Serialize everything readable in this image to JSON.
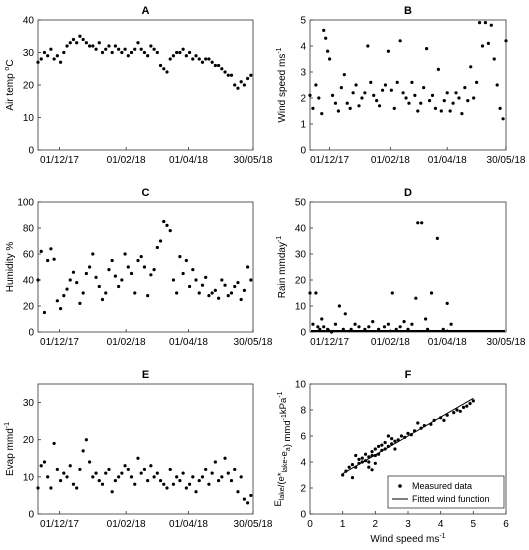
{
  "chart_data": [
    {
      "id": "A",
      "type": "scatter",
      "title": "A",
      "ylabel": "Air temp °C",
      "ylabel_main": "Air temp ",
      "ylabel_sup": "o",
      "ylabel_tail": "C",
      "ylim": [
        0,
        40
      ],
      "yticks": [
        0,
        10,
        20,
        30,
        40
      ],
      "xlim": [
        0,
        200
      ],
      "xticks": [
        {
          "pos": 20,
          "label": "01/12/17"
        },
        {
          "pos": 82,
          "label": "01/02/18"
        },
        {
          "pos": 140,
          "label": "01/04/18"
        },
        {
          "pos": 200,
          "label": "30/05/18"
        }
      ],
      "series": [
        {
          "x": [
            0,
            3,
            6,
            9,
            12,
            15,
            18,
            21,
            24,
            27,
            30,
            33,
            36,
            39,
            42,
            45,
            48,
            51,
            54,
            57,
            60,
            63,
            66,
            69,
            72,
            75,
            78,
            81,
            84,
            87,
            90,
            93,
            96,
            99,
            102,
            105,
            108,
            111,
            114,
            117,
            120,
            123,
            126,
            129,
            132,
            135,
            138,
            141,
            144,
            147,
            150,
            153,
            156,
            159,
            162,
            165,
            168,
            171,
            174,
            177,
            180,
            183,
            186,
            189,
            192,
            195,
            198
          ],
          "y": [
            27,
            28,
            30,
            29,
            31,
            28,
            29,
            27,
            30,
            32,
            33,
            34,
            33,
            35,
            34,
            33,
            32,
            32,
            31,
            33,
            30,
            31,
            32,
            30,
            32,
            31,
            30,
            31,
            29,
            30,
            31,
            33,
            31,
            30,
            29,
            32,
            31,
            30,
            26,
            25,
            24,
            28,
            29,
            30,
            30,
            31,
            29,
            30,
            28,
            29,
            28,
            27,
            28,
            28,
            27,
            26,
            26,
            25,
            24,
            23,
            23,
            20,
            19,
            21,
            20,
            22,
            23
          ]
        }
      ]
    },
    {
      "id": "B",
      "type": "scatter",
      "title": "B",
      "ylabel": "Wind speed ms⁻¹",
      "ylabel_main": "Wind speed ms",
      "ylabel_sup": "-1",
      "ylim": [
        0,
        5
      ],
      "yticks": [
        0,
        1,
        2,
        3,
        4,
        5
      ],
      "xlim": [
        0,
        200
      ],
      "xticks": [
        {
          "pos": 20,
          "label": "01/12/17"
        },
        {
          "pos": 82,
          "label": "01/02/18"
        },
        {
          "pos": 140,
          "label": "01/04/18"
        },
        {
          "pos": 200,
          "label": "30/05/18"
        }
      ],
      "series": [
        {
          "x": [
            0,
            3,
            6,
            9,
            12,
            14,
            16,
            18,
            20,
            23,
            26,
            29,
            32,
            35,
            38,
            41,
            44,
            47,
            50,
            53,
            56,
            59,
            62,
            65,
            68,
            71,
            74,
            77,
            80,
            83,
            86,
            89,
            92,
            95,
            98,
            101,
            104,
            107,
            110,
            113,
            116,
            119,
            122,
            125,
            128,
            131,
            134,
            137,
            140,
            143,
            146,
            149,
            152,
            155,
            158,
            161,
            164,
            167,
            170,
            173,
            176,
            179,
            182,
            185,
            188,
            191,
            194,
            197,
            200
          ],
          "y": [
            2.1,
            1.6,
            2.5,
            2.0,
            1.4,
            4.6,
            4.3,
            3.8,
            3.5,
            2.1,
            1.8,
            1.5,
            2.4,
            2.9,
            1.8,
            1.6,
            2.2,
            2.5,
            1.7,
            2.0,
            2.2,
            4.0,
            2.6,
            2.1,
            1.9,
            1.7,
            2.3,
            2.5,
            3.8,
            2.3,
            1.6,
            2.6,
            4.2,
            2.2,
            2.0,
            1.8,
            2.6,
            2.1,
            1.5,
            1.8,
            2.4,
            3.9,
            1.9,
            2.1,
            1.6,
            3.1,
            1.5,
            1.9,
            2.2,
            1.5,
            1.8,
            2.2,
            2.0,
            1.4,
            2.4,
            1.9,
            3.2,
            2.0,
            2.6,
            4.9,
            4.0,
            4.9,
            4.1,
            4.8,
            3.5,
            2.5,
            1.6,
            1.2,
            4.2
          ]
        }
      ]
    },
    {
      "id": "C",
      "type": "scatter",
      "title": "C",
      "ylabel": "Humidity %",
      "ylim": [
        0,
        100
      ],
      "yticks": [
        0,
        20,
        40,
        60,
        80,
        100
      ],
      "xlim": [
        0,
        200
      ],
      "xticks": [
        {
          "pos": 20,
          "label": "01/12/17"
        },
        {
          "pos": 82,
          "label": "01/02/18"
        },
        {
          "pos": 140,
          "label": "01/04/18"
        },
        {
          "pos": 200,
          "label": "30/05/18"
        }
      ],
      "series": [
        {
          "x": [
            0,
            3,
            6,
            9,
            12,
            15,
            18,
            21,
            24,
            27,
            30,
            33,
            36,
            39,
            42,
            45,
            48,
            51,
            54,
            57,
            60,
            63,
            66,
            69,
            72,
            75,
            78,
            81,
            84,
            87,
            90,
            93,
            96,
            99,
            102,
            105,
            108,
            111,
            114,
            117,
            120,
            123,
            126,
            129,
            132,
            135,
            138,
            141,
            144,
            147,
            150,
            153,
            156,
            159,
            162,
            165,
            168,
            171,
            174,
            177,
            180,
            183,
            186,
            189,
            192,
            195,
            198
          ],
          "y": [
            40,
            62,
            15,
            55,
            64,
            56,
            24,
            18,
            28,
            33,
            40,
            46,
            38,
            22,
            30,
            45,
            50,
            60,
            42,
            35,
            25,
            30,
            48,
            55,
            43,
            35,
            40,
            60,
            50,
            45,
            30,
            55,
            58,
            50,
            28,
            44,
            48,
            65,
            70,
            85,
            82,
            78,
            40,
            30,
            58,
            45,
            55,
            35,
            48,
            40,
            30,
            36,
            42,
            28,
            30,
            32,
            26,
            40,
            36,
            28,
            30,
            35,
            38,
            25,
            32,
            50,
            40
          ]
        }
      ]
    },
    {
      "id": "D",
      "type": "scatter",
      "title": "D",
      "ylabel": "Rain mmday⁻¹",
      "ylabel_main": "Rain mmday",
      "ylabel_sup": "-1",
      "ylim": [
        0,
        50
      ],
      "yticks": [
        0,
        10,
        20,
        30,
        40,
        50
      ],
      "xlim": [
        0,
        200
      ],
      "xticks": [
        {
          "pos": 20,
          "label": "01/12/17"
        },
        {
          "pos": 82,
          "label": "01/02/18"
        },
        {
          "pos": 140,
          "label": "01/04/18"
        },
        {
          "pos": 200,
          "label": "30/05/18"
        }
      ],
      "series": [
        {
          "x": [
            0,
            3,
            6,
            8,
            10,
            12,
            14,
            18,
            22,
            26,
            30,
            34,
            36,
            42,
            46,
            50,
            56,
            60,
            64,
            70,
            76,
            80,
            84,
            88,
            92,
            96,
            100,
            104,
            108,
            110,
            114,
            118,
            120,
            124,
            130,
            136,
            140,
            144
          ],
          "y": [
            15,
            3,
            15,
            2,
            1,
            5,
            2,
            1,
            0,
            3,
            10,
            1,
            7,
            1,
            3,
            2,
            1,
            2,
            4,
            1,
            2,
            3,
            15,
            1,
            2,
            4,
            1,
            3,
            13,
            42,
            42,
            5,
            1,
            15,
            36,
            1,
            11,
            3
          ]
        }
      ],
      "baseline_y": 0
    },
    {
      "id": "E",
      "type": "scatter",
      "title": "E",
      "ylabel": "Evap mmd⁻¹",
      "ylabel_main": "Evap mmd",
      "ylabel_sup": "-1",
      "ylim": [
        0,
        35
      ],
      "yticks": [
        0,
        10,
        20,
        30
      ],
      "xlim": [
        0,
        200
      ],
      "xticks": [
        {
          "pos": 20,
          "label": "01/12/17"
        },
        {
          "pos": 82,
          "label": "01/02/18"
        },
        {
          "pos": 140,
          "label": "01/04/18"
        },
        {
          "pos": 200,
          "label": "30/05/18"
        }
      ],
      "series": [
        {
          "x": [
            0,
            3,
            6,
            9,
            12,
            15,
            18,
            21,
            24,
            27,
            30,
            33,
            36,
            39,
            42,
            45,
            48,
            51,
            54,
            57,
            60,
            63,
            66,
            69,
            72,
            75,
            78,
            81,
            84,
            87,
            90,
            93,
            96,
            99,
            102,
            105,
            108,
            111,
            114,
            117,
            120,
            123,
            126,
            129,
            132,
            135,
            138,
            141,
            144,
            147,
            150,
            153,
            156,
            159,
            162,
            165,
            168,
            171,
            174,
            177,
            180,
            183,
            186,
            189,
            192,
            195,
            198
          ],
          "y": [
            7,
            13,
            14,
            10,
            7,
            19,
            12,
            9,
            11,
            10,
            13,
            8,
            7,
            12,
            17,
            20,
            14,
            10,
            11,
            9,
            8,
            11,
            12,
            6,
            9,
            10,
            11,
            13,
            12,
            10,
            8,
            15,
            11,
            12,
            9,
            13,
            10,
            11,
            9,
            8,
            7,
            12,
            8,
            10,
            9,
            11,
            7,
            8,
            10,
            6,
            9,
            10,
            12,
            8,
            11,
            14,
            9,
            10,
            15,
            11,
            9,
            12,
            6,
            10,
            4,
            3,
            5
          ]
        }
      ]
    },
    {
      "id": "F",
      "type": "scatter",
      "title": "F",
      "xlabel": "Wind speed ms⁻¹",
      "xlabel_main": "Wind speed ms",
      "xlabel_sup": "-1",
      "ylabel": "E_lake/(e*_lake-e_a) mmd⁻¹kPa⁻¹",
      "ylim": [
        0,
        10
      ],
      "yticks": [
        0,
        2,
        4,
        6,
        8,
        10
      ],
      "xlim": [
        0,
        6
      ],
      "xticks": [
        {
          "pos": 0,
          "label": "0"
        },
        {
          "pos": 1,
          "label": "1"
        },
        {
          "pos": 2,
          "label": "2"
        },
        {
          "pos": 3,
          "label": "3"
        },
        {
          "pos": 4,
          "label": "4"
        },
        {
          "pos": 5,
          "label": "5"
        },
        {
          "pos": 6,
          "label": "6"
        }
      ],
      "series": [
        {
          "name": "Measured data",
          "x": [
            1.0,
            1.1,
            1.2,
            1.3,
            1.4,
            1.5,
            1.5,
            1.6,
            1.6,
            1.7,
            1.7,
            1.8,
            1.8,
            1.9,
            1.9,
            2.0,
            2.0,
            2.1,
            2.1,
            2.2,
            2.2,
            2.3,
            2.3,
            2.4,
            2.5,
            2.5,
            2.6,
            2.7,
            2.8,
            2.9,
            3.0,
            3.1,
            3.2,
            3.4,
            3.5,
            3.7,
            3.8,
            4.0,
            4.1,
            4.2,
            4.4,
            4.5,
            4.6,
            4.7,
            4.8,
            4.9,
            5.0,
            1.3,
            1.8,
            2.4,
            3.3,
            1.4,
            2.0,
            2.6,
            1.9
          ],
          "y": [
            3.0,
            3.3,
            3.6,
            3.8,
            3.6,
            3.9,
            4.2,
            4.0,
            4.3,
            4.1,
            4.6,
            4.4,
            4.0,
            4.5,
            4.8,
            4.5,
            5.0,
            4.6,
            5.2,
            4.9,
            5.3,
            5.0,
            5.5,
            5.2,
            5.4,
            5.8,
            5.6,
            5.7,
            6.0,
            5.9,
            6.2,
            6.1,
            6.4,
            6.6,
            6.8,
            6.9,
            7.2,
            7.4,
            7.2,
            7.6,
            7.8,
            8.0,
            7.9,
            8.2,
            8.3,
            8.5,
            8.7,
            2.8,
            3.6,
            6.0,
            7.0,
            4.5,
            3.9,
            5.0,
            3.4
          ]
        },
        {
          "name": "Fitted wind function",
          "type": "line",
          "x": [
            1.0,
            5.0
          ],
          "y": [
            3.1,
            8.9
          ]
        }
      ],
      "legend": "bottom-right"
    }
  ]
}
